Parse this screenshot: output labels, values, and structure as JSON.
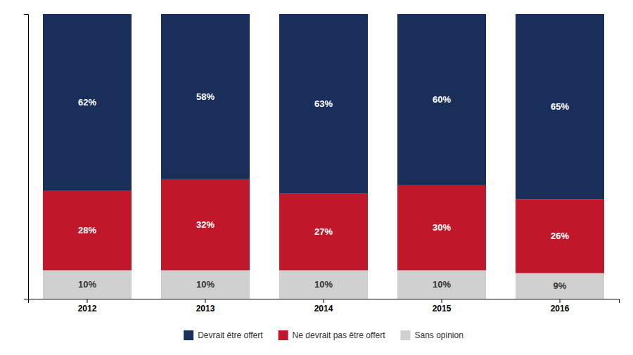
{
  "chart_data": {
    "type": "bar",
    "stacked": true,
    "data_labels": true,
    "legend": "bottom",
    "grid": false,
    "tick_labels": "x",
    "categories": [
      "2012",
      "2013",
      "2014",
      "2015",
      "2016"
    ],
    "series": [
      {
        "name": "Sans opinion",
        "color": "#d0d0d0",
        "values": [
          10,
          10,
          10,
          10,
          9
        ],
        "value_labels": [
          "10%",
          "10%",
          "10%",
          "10%",
          "9%"
        ]
      },
      {
        "name": "Ne devrait pas être offert",
        "color": "#c0182a",
        "values": [
          28,
          32,
          27,
          30,
          26
        ],
        "value_labels": [
          "28%",
          "32%",
          "27%",
          "30%",
          "26%"
        ]
      },
      {
        "name": "Devrait être offert",
        "color": "#1a2e5a",
        "values": [
          62,
          58,
          63,
          60,
          65
        ],
        "value_labels": [
          "62%",
          "58%",
          "63%",
          "60%",
          "65%"
        ]
      }
    ],
    "ylim": [
      0,
      100
    ],
    "yticks": []
  }
}
